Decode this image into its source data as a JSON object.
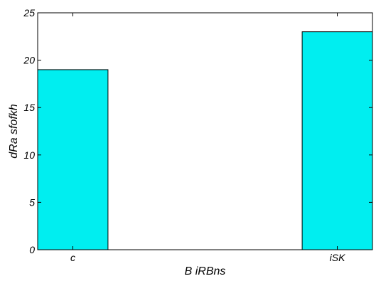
{
  "chart_data": {
    "type": "bar",
    "categories": [
      "c",
      "iSK"
    ],
    "values": [
      19,
      23
    ],
    "xlabel": "B  iRBns",
    "ylabel": "dRa sfofkh",
    "ylim": [
      0,
      25
    ],
    "yticks": [
      0,
      5,
      10,
      15,
      20,
      25
    ],
    "grid": false,
    "bar_color": "#00eef0",
    "bar_edge_color": "#000000"
  }
}
